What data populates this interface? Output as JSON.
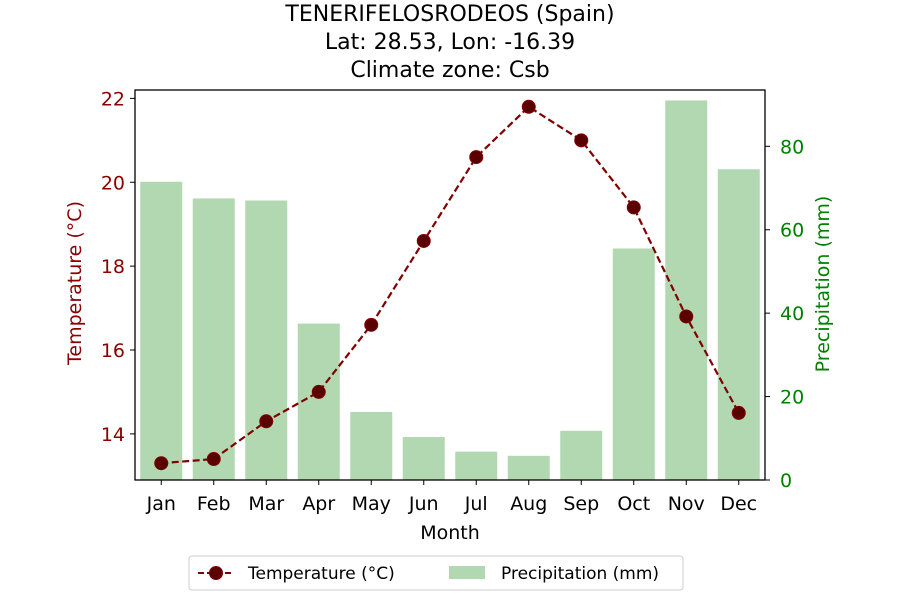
{
  "chart_data": {
    "type": "bar+line",
    "title_lines": [
      "TENERIFELOSRODEOS (Spain)",
      "Lat: 28.53, Lon: -16.39",
      "Climate zone: Csb"
    ],
    "xlabel": "Month",
    "ylabel_left": "Temperature (°C)",
    "ylabel_right": "Precipitation (mm)",
    "categories": [
      "Jan",
      "Feb",
      "Mar",
      "Apr",
      "May",
      "Jun",
      "Jul",
      "Aug",
      "Sep",
      "Oct",
      "Nov",
      "Dec"
    ],
    "series": [
      {
        "name": "Temperature (°C)",
        "type": "line",
        "axis": "left",
        "color": "#800000",
        "values": [
          13.3,
          13.4,
          14.3,
          15.0,
          16.6,
          18.6,
          20.6,
          21.8,
          21.0,
          19.4,
          16.8,
          14.5
        ]
      },
      {
        "name": "Precipitation (mm)",
        "type": "bar",
        "axis": "right",
        "color": "#b2d8b2",
        "values": [
          71.5,
          67.5,
          67.0,
          37.5,
          16.3,
          10.3,
          6.8,
          5.8,
          11.8,
          55.5,
          91.0,
          74.5
        ]
      }
    ],
    "ylim_left": [
      12.9,
      22.2
    ],
    "ylim_right": [
      0,
      93.5
    ],
    "yticks_left": [
      14,
      16,
      18,
      20,
      22
    ],
    "yticks_right": [
      0,
      20,
      40,
      60,
      80
    ],
    "left_axis_color": "#8b0000",
    "right_axis_color": "#008000",
    "legend_position": "bottom-center",
    "grid": false
  }
}
